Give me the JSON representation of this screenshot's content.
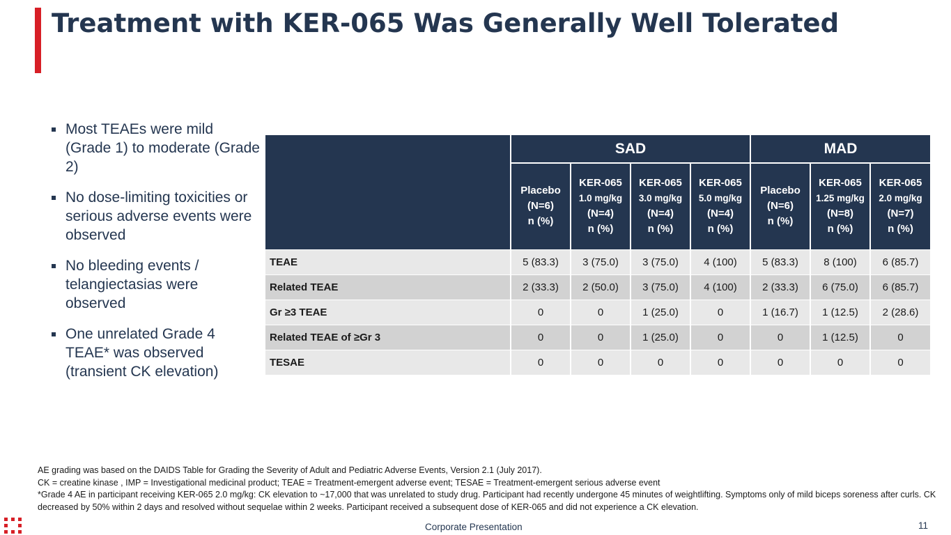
{
  "title": "Treatment with KER-065 Was Generally Well Tolerated",
  "bullets": [
    "Most TEAEs were mild (Grade 1) to moderate (Grade 2)",
    "No dose-limiting toxicities or serious adverse events were observed",
    "No bleeding events / telangiectasias were observed",
    "One unrelated Grade 4 TEAE* was observed (transient CK elevation)"
  ],
  "table": {
    "groups": [
      "SAD",
      "MAD"
    ],
    "columns": [
      {
        "name": "Placebo",
        "dose": "",
        "n": "(N=6)",
        "unit": "n (%)"
      },
      {
        "name": "KER-065",
        "dose": "1.0 mg/kg",
        "n": "(N=4)",
        "unit": "n (%)"
      },
      {
        "name": "KER-065",
        "dose": "3.0 mg/kg",
        "n": "(N=4)",
        "unit": "n (%)"
      },
      {
        "name": "KER-065",
        "dose": "5.0 mg/kg",
        "n": "(N=4)",
        "unit": "n (%)"
      },
      {
        "name": "Placebo",
        "dose": "",
        "n": "(N=6)",
        "unit": "n (%)"
      },
      {
        "name": "KER-065",
        "dose": "1.25 mg/kg",
        "n": "(N=8)",
        "unit": "n (%)"
      },
      {
        "name": "KER-065",
        "dose": "2.0 mg/kg",
        "n": "(N=7)",
        "unit": "n (%)"
      }
    ],
    "rows": [
      {
        "label": "TEAE",
        "cells": [
          "5 (83.3)",
          "3 (75.0)",
          "3 (75.0)",
          "4 (100)",
          "5 (83.3)",
          "8 (100)",
          "6 (85.7)"
        ]
      },
      {
        "label": "Related TEAE",
        "cells": [
          "2 (33.3)",
          "2 (50.0)",
          "3 (75.0)",
          "4 (100)",
          "2 (33.3)",
          "6 (75.0)",
          "6 (85.7)"
        ]
      },
      {
        "label": "Gr ≥3 TEAE",
        "cells": [
          "0",
          "0",
          "1 (25.0)",
          "0",
          "1 (16.7)",
          "1 (12.5)",
          "2 (28.6)"
        ]
      },
      {
        "label": "Related TEAE of ≥Gr 3",
        "cells": [
          "0",
          "0",
          "1 (25.0)",
          "0",
          "0",
          "1 (12.5)",
          "0"
        ]
      },
      {
        "label": "TESAE",
        "cells": [
          "0",
          "0",
          "0",
          "0",
          "0",
          "0",
          "0"
        ]
      }
    ]
  },
  "footnotes": [
    "AE grading was based on the DAIDS Table for Grading the Severity of Adult and Pediatric Adverse Events, Version 2.1 (July 2017).",
    "CK = creatine kinase , IMP = Investigational medicinal product; TEAE = Treatment-emergent adverse event; TESAE = Treatment-emergent serious adverse event",
    "*Grade 4 AE in participant receiving KER-065 2.0 mg/kg: CK elevation to ~17,000 that was unrelated to study drug. Participant had recently undergone 45 minutes of weightlifting. Symptoms only of mild biceps soreness after curls. CK decreased by 50% within 2 days and resolved without sequelae within 2 weeks. Participant received a subsequent dose of KER-065 and did not experience a CK elevation."
  ],
  "footer": {
    "center": "Corporate Presentation",
    "page": "11",
    "logo_icon": "company-logo-icon"
  },
  "colors": {
    "navy": "#243650",
    "accent_red": "#d71f26",
    "row_light": "#e8e8e8",
    "row_dark": "#d2d2d2"
  }
}
